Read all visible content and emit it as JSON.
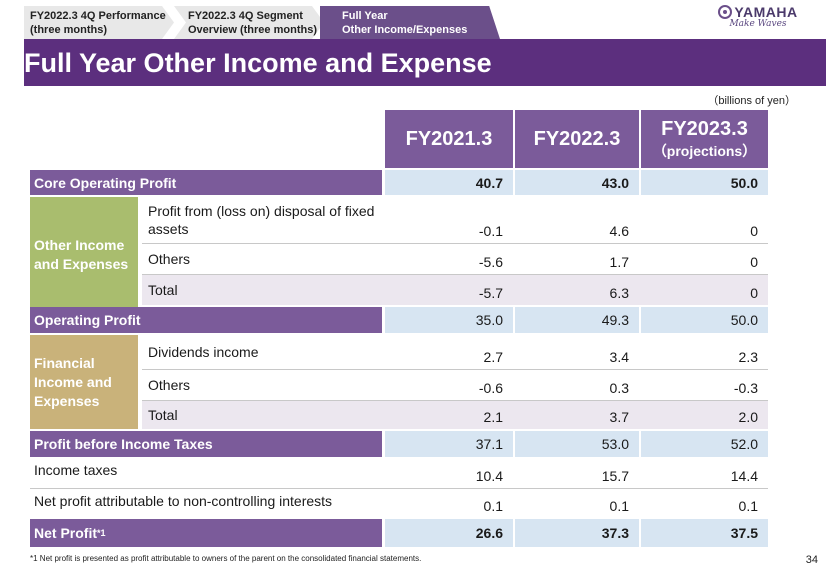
{
  "tabs": [
    {
      "line1": "FY2022.3 4Q Performance",
      "line2": "(three months)"
    },
    {
      "line1": "FY2022.3 4Q Segment",
      "line2": "Overview (three months)"
    },
    {
      "line1": "Full Year",
      "line2": "Other Income/Expenses"
    }
  ],
  "logo": {
    "name": "YAMAHA",
    "tagline": "Make Waves"
  },
  "title": "Full Year Other Income and Expense",
  "unit": "（billions of yen）",
  "headers": {
    "col1": "FY2021.3",
    "col2": "FY2022.3",
    "col3": "FY2023.3",
    "col3_sub": "（projections）"
  },
  "rows": {
    "core_operating_profit": {
      "label": "Core Operating Profit",
      "values": [
        "40.7",
        "43.0",
        "50.0"
      ]
    },
    "other_group_label": "Other Income and Expenses",
    "other_fixed_assets": {
      "label": "Profit from (loss on) disposal of fixed assets",
      "values": [
        "-0.1",
        "4.6",
        "0"
      ]
    },
    "other_others": {
      "label": "Others",
      "values": [
        "-5.6",
        "1.7",
        "0"
      ]
    },
    "other_total": {
      "label": "Total",
      "values": [
        "-5.7",
        "6.3",
        "0"
      ]
    },
    "operating_profit": {
      "label": "Operating Profit",
      "values": [
        "35.0",
        "49.3",
        "50.0"
      ]
    },
    "financial_group_label": "Financial Income and Expenses",
    "fin_dividends": {
      "label": "Dividends  income",
      "values": [
        "2.7",
        "3.4",
        "2.3"
      ]
    },
    "fin_others": {
      "label": "Others",
      "values": [
        "-0.6",
        "0.3",
        "-0.3"
      ]
    },
    "fin_total": {
      "label": "Total",
      "values": [
        "2.1",
        "3.7",
        "2.0"
      ]
    },
    "profit_before_tax": {
      "label": "Profit before Income  Taxes",
      "values": [
        "37.1",
        "53.0",
        "52.0"
      ]
    },
    "income_taxes": {
      "label": "Income taxes",
      "values": [
        "10.4",
        "15.7",
        "14.4"
      ]
    },
    "non_controlling": {
      "label": "Net profit attributable to non-controlling  interests",
      "values": [
        "0.1",
        "0.1",
        "0.1"
      ]
    },
    "net_profit": {
      "label": "Net Profit",
      "sup": "*1",
      "values": [
        "26.6",
        "37.3",
        "37.5"
      ]
    }
  },
  "footnote": "*1 Net profit is presented as profit attributable to owners of the parent on the consolidated financial statements.",
  "page_number": "34"
}
